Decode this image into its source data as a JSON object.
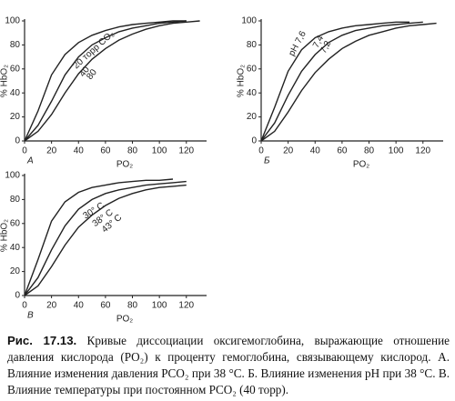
{
  "chart_data": [
    {
      "type": "line",
      "label": "А",
      "x_label": "PO₂",
      "y_label": "% HbO₂",
      "xlim": [
        0,
        135
      ],
      "ylim": [
        0,
        100
      ],
      "xticks": [
        0,
        20,
        40,
        60,
        80,
        100,
        120
      ],
      "yticks": [
        0,
        20,
        40,
        60,
        80,
        100
      ],
      "x": [
        0,
        10,
        20,
        30,
        40,
        50,
        60,
        70,
        80,
        90,
        100,
        110,
        120,
        130
      ],
      "series": [
        {
          "name": "20 торр CO₂",
          "color": "#222222",
          "values": [
            0,
            25,
            55,
            72,
            82,
            88,
            92,
            95,
            97,
            98,
            99,
            100,
            100,
            null
          ]
        },
        {
          "name": "40",
          "color": "#222222",
          "values": [
            0,
            13,
            33,
            55,
            70,
            80,
            86,
            91,
            94,
            96,
            98,
            99,
            100,
            null
          ]
        },
        {
          "name": "80",
          "color": "#222222",
          "values": [
            0,
            8,
            22,
            40,
            56,
            68,
            77,
            84,
            89,
            93,
            96,
            98,
            99,
            100
          ]
        }
      ]
    },
    {
      "type": "line",
      "label": "Б",
      "x_label": "PO₂",
      "y_label": "% HbO₂",
      "xlim": [
        0,
        135
      ],
      "ylim": [
        0,
        100
      ],
      "xticks": [
        0,
        20,
        40,
        60,
        80,
        100,
        120
      ],
      "yticks": [
        0,
        20,
        40,
        60,
        80,
        100
      ],
      "x": [
        0,
        10,
        20,
        30,
        40,
        50,
        60,
        70,
        80,
        90,
        100,
        110,
        120,
        130
      ],
      "series": [
        {
          "name": "pH 7,6",
          "color": "#222222",
          "values": [
            0,
            28,
            58,
            76,
            86,
            91,
            94,
            96,
            97,
            98,
            99,
            99,
            null,
            null
          ]
        },
        {
          "name": "7,4",
          "color": "#222222",
          "values": [
            0,
            15,
            38,
            58,
            72,
            82,
            88,
            92,
            94,
            96,
            97,
            98,
            99,
            null
          ]
        },
        {
          "name": "7,2",
          "color": "#222222",
          "values": [
            0,
            8,
            24,
            42,
            57,
            68,
            77,
            83,
            88,
            91,
            94,
            96,
            97,
            98
          ]
        }
      ]
    },
    {
      "type": "line",
      "label": "В",
      "x_label": "PO₂",
      "y_label": "% HbO₂",
      "xlim": [
        0,
        135
      ],
      "ylim": [
        0,
        100
      ],
      "xticks": [
        0,
        20,
        40,
        60,
        80,
        100,
        120
      ],
      "yticks": [
        0,
        20,
        40,
        60,
        80,
        100
      ],
      "x": [
        0,
        10,
        20,
        30,
        40,
        50,
        60,
        70,
        80,
        90,
        100,
        110,
        120,
        130
      ],
      "series": [
        {
          "name": "30° C",
          "color": "#222222",
          "values": [
            0,
            30,
            62,
            78,
            86,
            90,
            92,
            94,
            95,
            96,
            96,
            97,
            null,
            null
          ]
        },
        {
          "name": "38° C",
          "color": "#222222",
          "values": [
            0,
            15,
            38,
            58,
            72,
            80,
            85,
            88,
            90,
            92,
            93,
            94,
            95,
            null
          ]
        },
        {
          "name": "43° C",
          "color": "#222222",
          "values": [
            0,
            8,
            24,
            42,
            57,
            67,
            75,
            81,
            85,
            88,
            90,
            91,
            92,
            null
          ]
        }
      ]
    }
  ],
  "caption_label": "Рис. 17.13.",
  "caption": "Кривые диссоциации оксигемоглобина, выражающие отношение давления кислорода (PO₂) к проценту гемоглобина, связывающему кислород. А. Влияние изменения давления PCO₂ при 38 °С. Б. Влияние изменения pH при 38 °С. В. Влияние температуры при постоянном PCO₂ (40 торр)."
}
